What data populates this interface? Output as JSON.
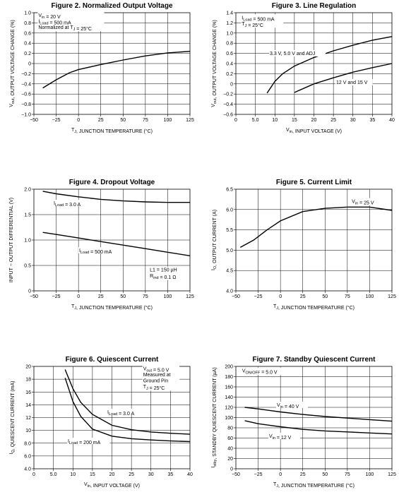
{
  "chart_data": [
    {
      "id": "fig2",
      "type": "line",
      "title": "Figure 2. Normalized Output Voltage",
      "xlabel": "T_J, JUNCTION TEMPERATURE (°C)",
      "ylabel": "V_out, OUTPUT VOLTAGE CHANGE (%)",
      "xlim": [
        -50,
        125
      ],
      "ylim": [
        -1.0,
        1.0
      ],
      "xticks": [
        -50,
        -25,
        0,
        25,
        50,
        75,
        100,
        125
      ],
      "yticks": [
        1.0,
        0.8,
        0.6,
        0.4,
        0.2,
        0,
        -0.2,
        -0.4,
        -0.6,
        -0.8,
        -1.0
      ],
      "xticklabels": [
        "−50",
        "−25",
        "0",
        "25",
        "50",
        "75",
        "100",
        "125"
      ],
      "yticklabels": [
        "1.0",
        "0.8",
        "0.6",
        "0.4",
        "0.2",
        "0",
        "−0.2",
        "−0.4",
        "−0.6",
        "−0.8",
        "−1.0"
      ],
      "grid": true,
      "series": [
        {
          "x": [
            -40,
            -25,
            -10,
            0,
            25,
            50,
            75,
            100,
            125
          ],
          "y": [
            -0.48,
            -0.32,
            -0.18,
            -0.12,
            -0.02,
            0.07,
            0.15,
            0.21,
            0.24
          ]
        }
      ],
      "annotations": [
        {
          "lines": [
            "V_in = 20 V",
            "I_Load = 500 mA",
            "Normalized at T_J = 25°C"
          ],
          "at": [
            -45,
            0.92
          ]
        }
      ]
    },
    {
      "id": "fig3",
      "type": "line",
      "title": "Figure 3. Line Regulation",
      "xlabel": "V_in, INPUT VOLTAGE (V)",
      "ylabel": "V_out, OUTPUT VOLTAGE CHANGE (%)",
      "xlim": [
        0,
        40
      ],
      "ylim": [
        -0.6,
        1.4
      ],
      "xticks": [
        0,
        5,
        10,
        15,
        20,
        25,
        30,
        35,
        40
      ],
      "yticks": [
        1.4,
        1.2,
        1.0,
        0.8,
        0.6,
        0.4,
        0.2,
        0,
        -0.2,
        -0.4,
        -0.6
      ],
      "xticklabels": [
        "0",
        "5.0",
        "10",
        "15",
        "20",
        "25",
        "30",
        "35",
        "40"
      ],
      "yticklabels": [
        "1.4",
        "1.2",
        "1.0",
        "0.8",
        "0.6",
        "0.4",
        "0.2",
        "0",
        "−0.2",
        "−0.4",
        "−0.6"
      ],
      "grid": true,
      "series": [
        {
          "name": "3.3 V, 5.0 V and ADJ",
          "x": [
            8,
            10,
            12,
            15,
            20,
            25,
            30,
            35,
            40
          ],
          "y": [
            -0.18,
            0.05,
            0.2,
            0.35,
            0.52,
            0.65,
            0.76,
            0.86,
            0.93
          ]
        },
        {
          "name": "12 V and 15 V",
          "x": [
            15,
            20,
            25,
            30,
            35,
            40
          ],
          "y": [
            -0.17,
            0.0,
            0.12,
            0.23,
            0.32,
            0.4
          ]
        }
      ],
      "annotations": [
        {
          "lines": [
            "I_Load = 500 mA",
            "T_J = 25°C"
          ],
          "at": [
            1.5,
            1.27
          ]
        }
      ]
    },
    {
      "id": "fig4",
      "type": "line",
      "title": "Figure 4. Dropout Voltage",
      "xlabel": "T_J, JUNCTION TEMPERATURE (°C)",
      "ylabel": "INPUT − OUTPUT DIFFERENTIAL (V)",
      "xlim": [
        -50,
        125
      ],
      "ylim": [
        0,
        2.0
      ],
      "xticks": [
        -50,
        -25,
        0,
        25,
        50,
        75,
        100,
        125
      ],
      "yticks": [
        2.0,
        1.5,
        1.0,
        0.5,
        0
      ],
      "xticklabels": [
        "−50",
        "−25",
        "0",
        "25",
        "50",
        "75",
        "100",
        "125"
      ],
      "yticklabels": [
        "2.0",
        "1.5",
        "1.0",
        "0.5",
        "0"
      ],
      "grid": true,
      "series": [
        {
          "name": "I_Load = 3.0 A",
          "x": [
            -40,
            -25,
            0,
            25,
            50,
            75,
            100,
            125
          ],
          "y": [
            1.96,
            1.91,
            1.85,
            1.8,
            1.77,
            1.75,
            1.74,
            1.74
          ]
        },
        {
          "name": "I_Load = 500 mA",
          "x": [
            -40,
            -25,
            0,
            25,
            50,
            75,
            100,
            125
          ],
          "y": [
            1.15,
            1.11,
            1.04,
            0.97,
            0.9,
            0.83,
            0.76,
            0.69
          ]
        }
      ],
      "annotations": [
        {
          "lines": [
            "L1 = 150 µH",
            "R_ind = 0.1 Ω"
          ],
          "at": [
            80,
            0.38
          ]
        }
      ]
    },
    {
      "id": "fig5",
      "type": "line",
      "title": "Figure 5. Current Limit",
      "xlabel": "T_J, JUNCTION TEMPERATURE (°C)",
      "ylabel": "I_O, OUTPUT CURRENT (A)",
      "xlim": [
        -50,
        125
      ],
      "ylim": [
        4.0,
        6.5
      ],
      "xticks": [
        -50,
        -25,
        0,
        25,
        50,
        75,
        100,
        125
      ],
      "yticks": [
        6.5,
        6.0,
        5.5,
        5.0,
        4.5,
        4.0
      ],
      "xticklabels": [
        "−50",
        "−25",
        "0",
        "25",
        "50",
        "75",
        "100",
        "125"
      ],
      "yticklabels": [
        "6.5",
        "6.0",
        "5.5",
        "5.0",
        "4.5",
        "4.0"
      ],
      "grid": true,
      "series": [
        {
          "x": [
            -45,
            -30,
            -15,
            0,
            25,
            50,
            75,
            100,
            125
          ],
          "y": [
            5.07,
            5.25,
            5.5,
            5.72,
            5.95,
            6.03,
            6.06,
            6.06,
            5.98
          ]
        }
      ],
      "annotations": [
        {
          "lines": [
            "V_in = 25 V"
          ],
          "at": [
            80,
            6.16
          ]
        }
      ]
    },
    {
      "id": "fig6",
      "type": "line",
      "title": "Figure 6. Quiescent Current",
      "xlabel": "V_in, INPUT VOLTAGE (V)",
      "ylabel": "I_Q, QUIESCENT CURRENT (mA)",
      "xlim": [
        0,
        40
      ],
      "ylim": [
        4.0,
        20
      ],
      "xticks": [
        0,
        5,
        10,
        15,
        20,
        25,
        30,
        35,
        40
      ],
      "yticks": [
        20,
        18,
        16,
        14,
        12,
        10,
        8.0,
        6.0,
        4.0
      ],
      "xticklabels": [
        "0",
        "5.0",
        "10",
        "15",
        "20",
        "25",
        "30",
        "35",
        "40"
      ],
      "yticklabels": [
        "20",
        "18",
        "16",
        "14",
        "12",
        "10",
        "8.0",
        "6.0",
        "4.0"
      ],
      "grid": true,
      "series": [
        {
          "name": "I_Load = 3.0 A",
          "x": [
            8,
            10,
            12,
            15,
            20,
            25,
            30,
            35,
            40
          ],
          "y": [
            19.5,
            16.5,
            14.4,
            12.5,
            10.8,
            10.1,
            9.75,
            9.55,
            9.4
          ]
        },
        {
          "name": "I_Load = 200 mA",
          "x": [
            8,
            10,
            12,
            15,
            20,
            25,
            30,
            35,
            40
          ],
          "y": [
            18.2,
            14.5,
            12.2,
            10.2,
            9.1,
            8.7,
            8.5,
            8.35,
            8.25
          ]
        }
      ],
      "annotations": [
        {
          "lines": [
            "V_out = 5.0 V",
            "Measured at",
            "Ground Pin",
            "T_J = 25°C"
          ],
          "at": [
            28,
            19.4
          ]
        }
      ]
    },
    {
      "id": "fig7",
      "type": "line",
      "title": "Figure 7. Standby Quiescent Current",
      "xlabel": "T_J, JUNCTION TEMPERATURE (°C)",
      "ylabel": "I_stby, STANDBY QUIESCENT CURRENT (µA)",
      "xlim": [
        -50,
        125
      ],
      "ylim": [
        0,
        200
      ],
      "xticks": [
        -50,
        -25,
        0,
        25,
        50,
        75,
        100,
        125
      ],
      "yticks": [
        200,
        180,
        160,
        140,
        120,
        100,
        80,
        60,
        40,
        20,
        0
      ],
      "xticklabels": [
        "−50",
        "−25",
        "0",
        "25",
        "50",
        "75",
        "100",
        "125"
      ],
      "yticklabels": [
        "200",
        "180",
        "160",
        "140",
        "120",
        "100",
        "80",
        "60",
        "40",
        "20",
        "0"
      ],
      "grid": true,
      "series": [
        {
          "name": "V_in = 40 V",
          "x": [
            -40,
            -25,
            0,
            25,
            50,
            75,
            100,
            125
          ],
          "y": [
            120,
            117,
            111,
            106,
            102,
            99,
            96,
            93
          ]
        },
        {
          "name": "V_in = 12 V",
          "x": [
            -40,
            -25,
            0,
            25,
            50,
            75,
            100,
            125
          ],
          "y": [
            94,
            88,
            82,
            77,
            74,
            72,
            70,
            68
          ]
        }
      ],
      "annotations": [
        {
          "lines": [
            "V_ON/OFF = 5.0 V"
          ],
          "at": [
            -43,
            188
          ]
        }
      ]
    }
  ]
}
